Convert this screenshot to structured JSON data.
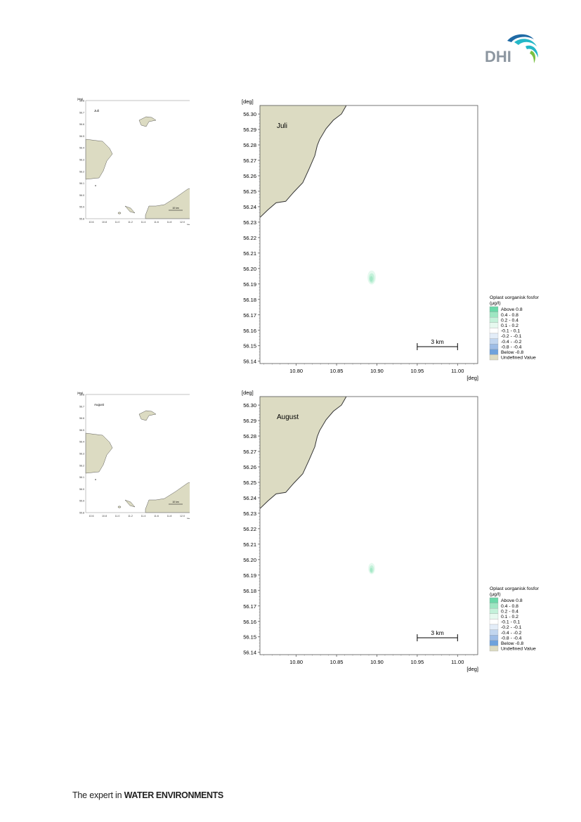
{
  "logo": {
    "text": "DHI",
    "colors": {
      "text": "#8c96a0",
      "wave_dark": "#1f6aa5",
      "wave_light": "#24b7c7",
      "wave_green": "#7ac043"
    }
  },
  "footer": {
    "prefix": "The expert in ",
    "emphasis": "WATER ENVIRONMENTS"
  },
  "colors": {
    "land": "#dcdbc2",
    "coast": "#333333",
    "frame": "#555555"
  },
  "legend": {
    "title_line1": "Oplast uorganisk fosfor",
    "title_line2": "(µg/l)",
    "entries": [
      {
        "label": "Above  0.8",
        "color": "#6ad8a8"
      },
      {
        "label": "0.4 -  0.8",
        "color": "#9ee6c2"
      },
      {
        "label": "0.2 -  0.4",
        "color": "#c4f1da"
      },
      {
        "label": "0.1 -  0.2",
        "color": "#e6f9ef"
      },
      {
        "label": "-0.1 -  0.1",
        "color": "#ffffff"
      },
      {
        "label": "-0.2 - -0.1",
        "color": "#e3edf8"
      },
      {
        "label": "-0.4 - -0.2",
        "color": "#c2d6ef"
      },
      {
        "label": "-0.8 - -0.4",
        "color": "#9ebde6"
      },
      {
        "label": "Below -0.8",
        "color": "#6ea2dc"
      },
      {
        "label": "Undefined Value",
        "color": "#dcdbc2"
      }
    ]
  },
  "axis": {
    "unit": "[deg]",
    "y_ticks": [
      56.3,
      56.29,
      56.28,
      56.27,
      56.26,
      56.25,
      56.24,
      56.23,
      56.22,
      56.21,
      56.2,
      56.19,
      56.18,
      56.17,
      56.16,
      56.15,
      56.14
    ],
    "y_tick_labels": [
      "56.30",
      "56.29",
      "56.28",
      "56.27",
      "56.26",
      "56.25",
      "56.24",
      "56.23",
      "56.22",
      "56.21",
      "56.20",
      "56.19",
      "56.18",
      "56.17",
      "56.16",
      "56.15",
      "56.14"
    ],
    "x_ticks": [
      10.8,
      10.85,
      10.9,
      10.95,
      11.0
    ],
    "x_tick_labels": [
      "10.80",
      "10.85",
      "10.90",
      "10.95",
      "11.00"
    ],
    "xlim": [
      10.755,
      11.025
    ],
    "ylim": [
      56.1385,
      56.3055
    ]
  },
  "scale_bar": {
    "label": "3 km",
    "from_lon": 10.95,
    "to_lon": 11.0
  },
  "coastline": [
    [
      10.755,
      56.233
    ],
    [
      10.765,
      56.238
    ],
    [
      10.775,
      56.2425
    ],
    [
      10.787,
      56.2435
    ],
    [
      10.797,
      56.2495
    ],
    [
      10.808,
      56.2555
    ],
    [
      10.816,
      56.2645
    ],
    [
      10.823,
      56.273
    ],
    [
      10.826,
      56.2795
    ],
    [
      10.829,
      56.2835
    ],
    [
      10.837,
      56.2905
    ],
    [
      10.846,
      56.296
    ],
    [
      10.856,
      56.3
    ],
    [
      10.862,
      56.3055
    ]
  ],
  "maps": [
    {
      "month": "Juli",
      "plume": {
        "lon": 10.8935,
        "lat": 56.1942,
        "size": 1.0
      }
    },
    {
      "month": "August",
      "plume": {
        "lon": 10.8935,
        "lat": 56.1942,
        "size": 0.8
      }
    }
  ],
  "overview": {
    "unit": "[deg]",
    "y_tick_labels": [
      "56.8",
      "56.7",
      "56.6",
      "56.5",
      "56.4",
      "56.3",
      "56.2",
      "56.1",
      "56.0",
      "55.9",
      "55.8"
    ],
    "x_tick_labels": [
      "10.6",
      "10.8",
      "11.0",
      "11.2",
      "11.4",
      "11.6",
      "11.8",
      "12.0"
    ],
    "scale_label": "10 km",
    "legend_title": "Oplast uorganisk fosfor"
  }
}
